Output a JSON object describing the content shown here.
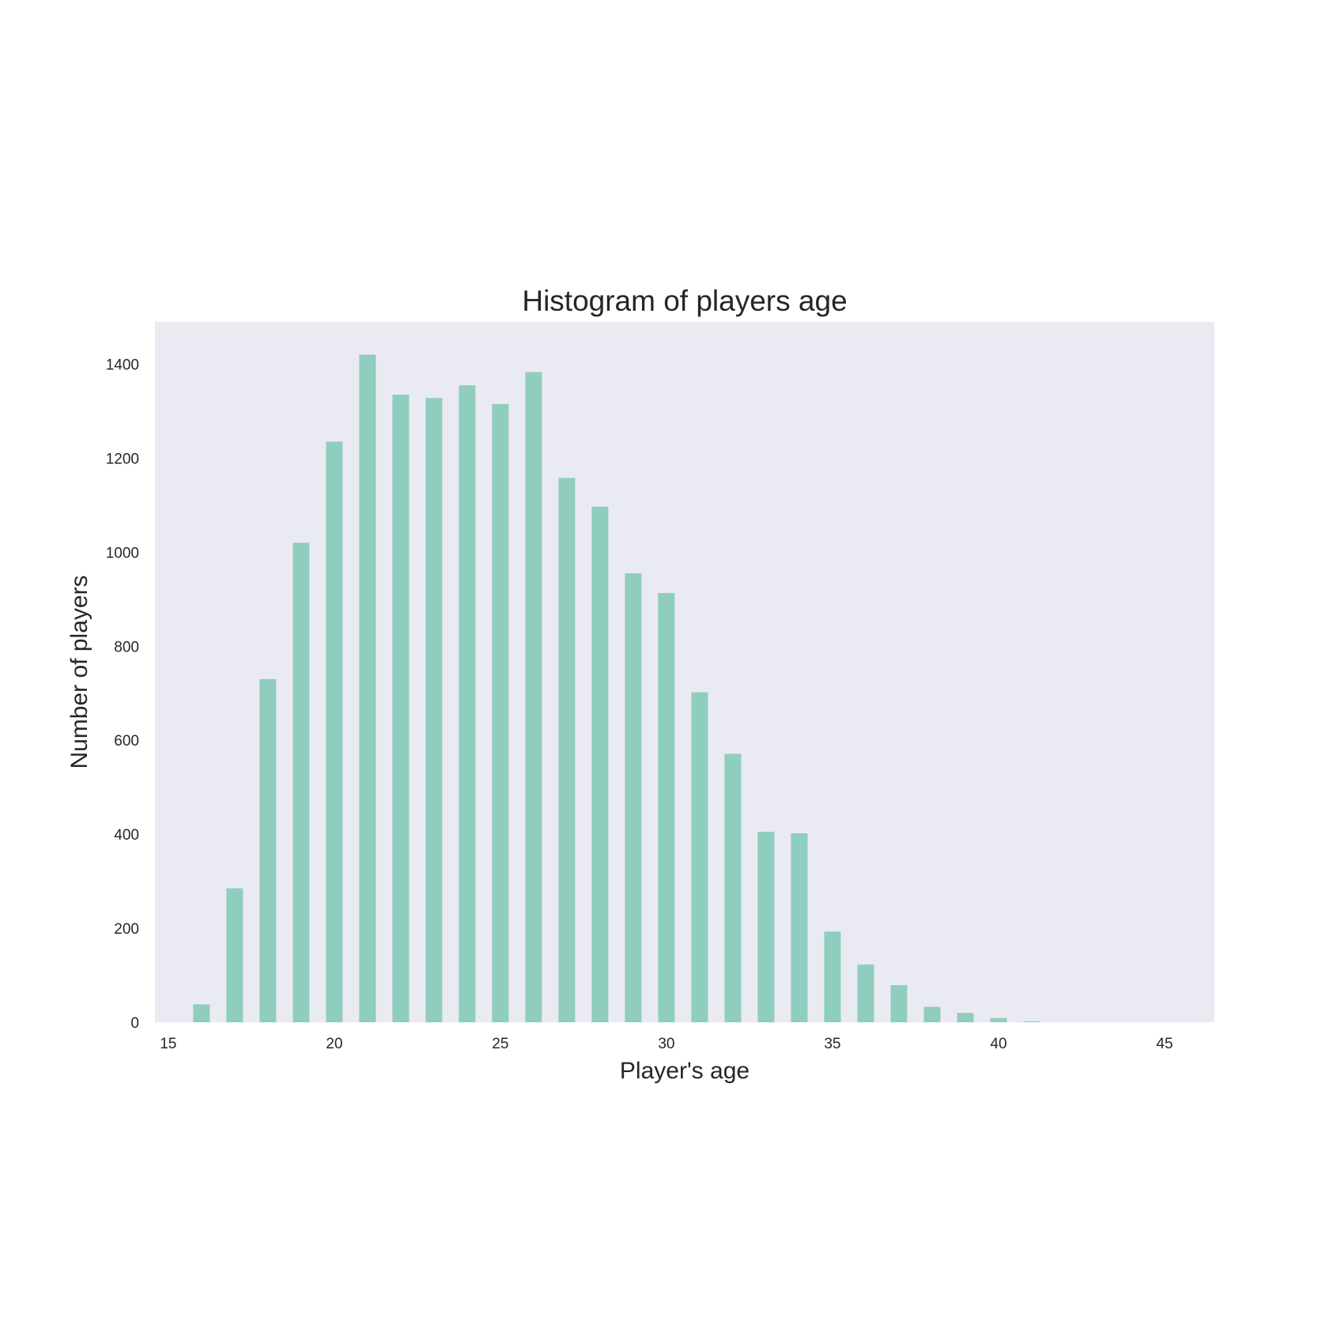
{
  "chart_data": {
    "type": "bar",
    "title": "Histogram of players age",
    "xlabel": "Player's age",
    "ylabel": "Number of players",
    "xlim": [
      14.6,
      46.5
    ],
    "ylim": [
      0,
      1490
    ],
    "grid": false,
    "x_ticks": [
      15,
      20,
      25,
      30,
      35,
      40,
      45
    ],
    "y_ticks": [
      0,
      200,
      400,
      600,
      800,
      1000,
      1200,
      1400
    ],
    "bin_width": 0.5,
    "bins": [
      {
        "x": 16,
        "value": 38
      },
      {
        "x": 17,
        "value": 285
      },
      {
        "x": 18,
        "value": 730
      },
      {
        "x": 19,
        "value": 1020
      },
      {
        "x": 20,
        "value": 1235
      },
      {
        "x": 21,
        "value": 1420
      },
      {
        "x": 22,
        "value": 1335
      },
      {
        "x": 23,
        "value": 1328
      },
      {
        "x": 24,
        "value": 1355
      },
      {
        "x": 25,
        "value": 1315
      },
      {
        "x": 26,
        "value": 1383
      },
      {
        "x": 27,
        "value": 1158
      },
      {
        "x": 28,
        "value": 1097
      },
      {
        "x": 29,
        "value": 955
      },
      {
        "x": 30,
        "value": 913
      },
      {
        "x": 31,
        "value": 702
      },
      {
        "x": 32,
        "value": 571
      },
      {
        "x": 33,
        "value": 405
      },
      {
        "x": 34,
        "value": 402
      },
      {
        "x": 35,
        "value": 193
      },
      {
        "x": 36,
        "value": 123
      },
      {
        "x": 37,
        "value": 79
      },
      {
        "x": 38,
        "value": 33
      },
      {
        "x": 39,
        "value": 20
      },
      {
        "x": 40,
        "value": 9
      },
      {
        "x": 41,
        "value": 2
      }
    ],
    "colors": {
      "bar": "#8fcdbf",
      "plot_background": "#eaeaf2",
      "text": "#262626"
    }
  }
}
